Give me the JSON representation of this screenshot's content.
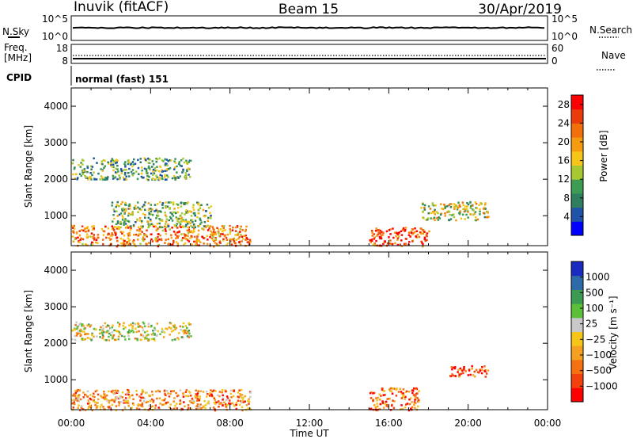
{
  "header": {
    "station": "Inuvik (fitACF)",
    "beam": "Beam 15",
    "date": "30/Apr/2019"
  },
  "top_panels": {
    "nsky_label": "N.Sky",
    "nsky_ticks": [
      "10^5",
      "10^0"
    ],
    "nsearch_label": "N.Search",
    "nsearch_ticks": [
      "10^5",
      "10^0"
    ],
    "freq_label_1": "Freq.",
    "freq_label_2": "[MHz]",
    "freq_ticks": [
      "18",
      "8"
    ],
    "nave_label": "Nave",
    "nave_ticks": [
      "60",
      "0"
    ],
    "cpid_label": "CPID",
    "cpid_text": "normal (fast) 151"
  },
  "colors": {
    "power_scale": [
      "#0000ff",
      "#1f53a8",
      "#2f7f5f",
      "#3d9b53",
      "#a8c832",
      "#f5c518",
      "#f59b0f",
      "#f36f0c",
      "#ea3b0a",
      "#ff0000"
    ],
    "velocity_scale": [
      "#ff0000",
      "#f4400c",
      "#f47010",
      "#f5a020",
      "#f5c518",
      "#c8c8c8",
      "#5cbf3a",
      "#3c9a52",
      "#2d6aa8",
      "#1c2bbf"
    ]
  },
  "chart_data": [
    {
      "type": "heatmap",
      "panel": "power",
      "ylabel": "Slant Range [km]",
      "xlabel": "Time UT",
      "x_ticks": [
        "00:00",
        "04:00",
        "08:00",
        "12:00",
        "16:00",
        "20:00",
        "00:00"
      ],
      "y_ticks": [
        1000,
        2000,
        3000,
        4000
      ],
      "xlim_hours": [
        0,
        24
      ],
      "ylim_km": [
        180,
        4500
      ],
      "colorbar": {
        "label": "Power [dB]",
        "ticks": [
          4,
          8,
          12,
          16,
          20,
          24,
          28
        ],
        "range": [
          0,
          30
        ]
      },
      "regions": [
        {
          "t": [
            0,
            9
          ],
          "r": [
            180,
            750
          ],
          "level": 0.72
        },
        {
          "t": [
            2,
            7
          ],
          "r": [
            700,
            1400
          ],
          "level": 0.42
        },
        {
          "t": [
            0,
            6
          ],
          "r": [
            2000,
            2600
          ],
          "level": 0.35
        },
        {
          "t": [
            15,
            18
          ],
          "r": [
            180,
            700
          ],
          "level": 0.82
        },
        {
          "t": [
            17.5,
            21
          ],
          "r": [
            900,
            1400
          ],
          "level": 0.5
        }
      ]
    },
    {
      "type": "heatmap",
      "panel": "velocity",
      "ylabel": "Slant Range [km]",
      "xlabel": "Time UT",
      "x_ticks": [
        "00:00",
        "04:00",
        "08:00",
        "12:00",
        "16:00",
        "20:00",
        "00:00"
      ],
      "y_ticks": [
        1000,
        2000,
        3000,
        4000
      ],
      "xlim_hours": [
        0,
        24
      ],
      "ylim_km": [
        180,
        4500
      ],
      "colorbar": {
        "label": "Velocity [m s⁻¹]",
        "ticks": [
          "1000",
          "500",
          "100",
          "25",
          "−25",
          "−100",
          "−500",
          "−1000"
        ],
        "range": [
          -1000,
          1000
        ]
      },
      "regions": [
        {
          "t": [
            0,
            9
          ],
          "r": [
            180,
            750
          ],
          "level": 0.3
        },
        {
          "t": [
            0,
            6
          ],
          "r": [
            2100,
            2600
          ],
          "level": 0.5
        },
        {
          "t": [
            15,
            17.5
          ],
          "r": [
            180,
            800
          ],
          "level": 0.25
        },
        {
          "t": [
            19,
            21
          ],
          "r": [
            1100,
            1400
          ],
          "level": 0.12
        }
      ]
    }
  ]
}
